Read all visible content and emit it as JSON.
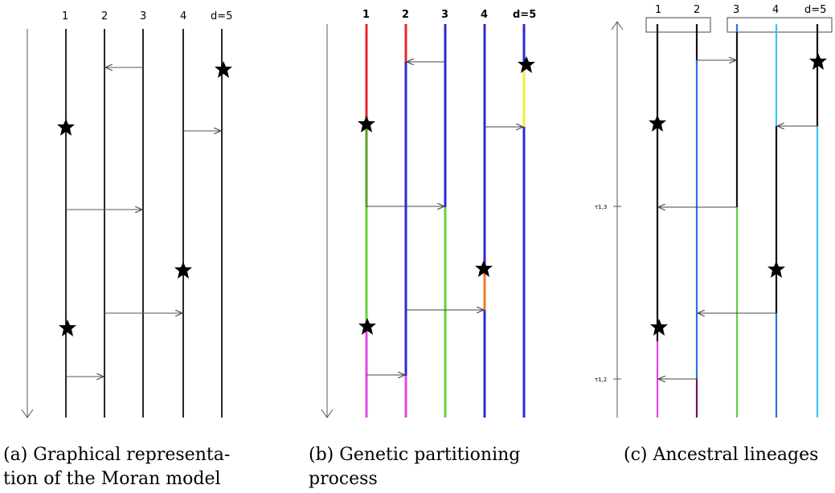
{
  "panel_a": {
    "labels": [
      "1",
      "2",
      "3",
      "4",
      "d=5"
    ],
    "caption": "(a) Graphical representa-\ntion of the Moran model"
  },
  "panel_b": {
    "labels": [
      "1",
      "2",
      "3",
      "4",
      "d=5"
    ],
    "caption": "(b) Genetic partitioning\nprocess"
  },
  "panel_c": {
    "labels": [
      "1",
      "2",
      "3",
      "4",
      "d=5"
    ],
    "tau_labels": [
      "τ1,3",
      "τ1,2"
    ],
    "caption": "(c) Ancestral lineages"
  },
  "colors": {
    "black": "#111111",
    "arrow": "#555555",
    "red": "#e8262a",
    "blue": "#2a2ad6",
    "yellow": "#f0ee3a",
    "green_dark": "#5aa02a",
    "green": "#66d13a",
    "orange": "#f07a2a",
    "magenta": "#e844e6",
    "dark_magenta": "#7a1060",
    "light_blue": "#3ac4f0",
    "mid_blue": "#2a72e0"
  }
}
